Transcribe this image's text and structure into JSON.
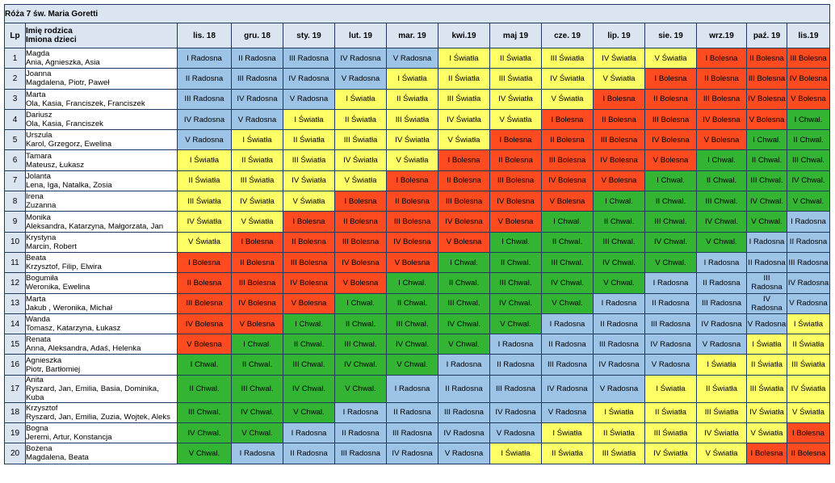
{
  "title": "Róża 7 św. Maria Goretti",
  "headers": {
    "lp": "Lp",
    "parent": "Imię rodzica",
    "children": "Imiona dzieci",
    "months": [
      "lis. 18",
      "gru. 18",
      "sty. 19",
      "lut. 19",
      "mar. 19",
      "kwi.19",
      "maj 19",
      "cze. 19",
      "lip. 19",
      "sie. 19",
      "wrz.19",
      "paź. 19",
      "lis.19"
    ]
  },
  "colors": {
    "Radosna": "#9dc3e6",
    "Światła": "#ffff66",
    "Bolesna": "#ff4b1f",
    "Chwal.": "#33b533",
    "header_bg": "#dbe5f1",
    "border": "#1f3a5f"
  },
  "rows": [
    {
      "lp": "1",
      "parent": "Magda",
      "children": "Ania, Agnieszka, Asia",
      "cells": [
        "I Radosna",
        "II Radosna",
        "III Radosna",
        "IV Radosna",
        "V Radosna",
        "I Światła",
        "II Światła",
        "III Światła",
        "IV Światła",
        "V Światła",
        "I Bolesna",
        "II Bolesna",
        "III Bolesna"
      ]
    },
    {
      "lp": "2",
      "parent": "Joanna",
      "children": "Magdalena, Piotr, Paweł",
      "cells": [
        "II Radosna",
        "III Radosna",
        "IV Radosna",
        "V Radosna",
        "I Światła",
        "II Światła",
        "III Światła",
        "IV Światła",
        "V Światła",
        "I Bolesna",
        "II Bolesna",
        "III Bolesna",
        "IV Bolesna"
      ]
    },
    {
      "lp": "3",
      "parent": "Marta",
      "children": "Ola, Kasia, Franciszek, Franciszek",
      "cells": [
        "III Radosna",
        "IV Radosna",
        "V Radosna",
        "I Światła",
        "II Światła",
        "III Światła",
        "IV Światła",
        "V Światła",
        "I Bolesna",
        "II Bolesna",
        "III Bolesna",
        "IV Bolesna",
        "V Bolesna"
      ]
    },
    {
      "lp": "4",
      "parent": "Dariusz",
      "children": "Ola, Kasia, Franciszek",
      "cells": [
        "IV Radosna",
        "V Radosna",
        "I Światła",
        "II Światła",
        "III Światła",
        "IV Światła",
        "V Światła",
        "I Bolesna",
        "II Bolesna",
        "III Bolesna",
        "IV Bolesna",
        "V Bolesna",
        "I Chwal."
      ]
    },
    {
      "lp": "5",
      "parent": "Urszula",
      "children": "Karol, Grzegorz, Ewelina",
      "cells": [
        "V Radosna",
        "I Światła",
        "II Światła",
        "III Światła",
        "IV Światła",
        "V Światła",
        "I Bolesna",
        "II Bolesna",
        "III Bolesna",
        "IV Bolesna",
        "V Bolesna",
        "I Chwal.",
        "II Chwal."
      ]
    },
    {
      "lp": "6",
      "parent": "Tamara",
      "children": "Mateusz, Łukasz",
      "cells": [
        "I Światła",
        "II Światła",
        "III Światła",
        "IV Światła",
        "V Światła",
        "I Bolesna",
        "II Bolesna",
        "III Bolesna",
        "IV Bolesna",
        "V Bolesna",
        "I Chwal.",
        "II Chwal.",
        "III Chwal."
      ]
    },
    {
      "lp": "7",
      "parent": "Jolanta",
      "children": "Lena, Iga, Natalka, Zosia",
      "cells": [
        "II Światła",
        "III Światła",
        "IV Światła",
        "V Światła",
        "I Bolesna",
        "II Bolesna",
        "III Bolesna",
        "IV Bolesna",
        "V Bolesna",
        "I Chwal.",
        "II Chwal.",
        "III Chwal.",
        "IV Chwal."
      ]
    },
    {
      "lp": "8",
      "parent": "Irena",
      "children": "Zuzanna",
      "cells": [
        "III Światła",
        "IV Światła",
        "V Światła",
        "I Bolesna",
        "II Bolesna",
        "III Bolesna",
        "IV Bolesna",
        "V Bolesna",
        "I Chwal.",
        "II Chwal.",
        "III Chwal.",
        "IV Chwal.",
        "V Chwal."
      ]
    },
    {
      "lp": "9",
      "parent": "Monika",
      "children": "Aleksandra, Katarzyna, Małgorzata, Jan",
      "cells": [
        "IV Światła",
        "V Światła",
        "I Bolesna",
        "II Bolesna",
        "III Bolesna",
        "IV Bolesna",
        "V Bolesna",
        "I Chwal.",
        "II Chwal.",
        "III Chwal.",
        "IV Chwal.",
        "V Chwal.",
        "I Radosna"
      ]
    },
    {
      "lp": "10",
      "parent": "Krystyna",
      "children": "Marcin, Robert",
      "cells": [
        "V Światła",
        "I Bolesna",
        "II Bolesna",
        "III Bolesna",
        "IV Bolesna",
        "V Bolesna",
        "I Chwal.",
        "II Chwal.",
        "III Chwal.",
        "IV Chwal.",
        "V Chwal.",
        "I Radosna",
        "II Radosna"
      ]
    },
    {
      "lp": "11",
      "parent": "Beata",
      "children": "Krzysztof, Filip, Elwira",
      "cells": [
        "I Bolesna",
        "II Bolesna",
        "III Bolesna",
        "IV Bolesna",
        "V Bolesna",
        "I Chwal.",
        "II Chwal.",
        "III Chwal.",
        "IV Chwal.",
        "V Chwal.",
        "I Radosna",
        "II Radosna",
        "III Radosna"
      ]
    },
    {
      "lp": "12",
      "parent": "Bogumiła",
      "children": "Weronika, Ewelina",
      "cells": [
        "II Bolesna",
        "III Bolesna",
        "IV Bolesna",
        "V Bolesna",
        "I Chwal.",
        "II Chwal.",
        "III Chwal.",
        "IV Chwal.",
        "V Chwal.",
        "I Radosna",
        "II Radosna",
        "III Radosna",
        "IV Radosna"
      ]
    },
    {
      "lp": "13",
      "parent": "Marta",
      "children": "Jakub , Weronika, Michał",
      "cells": [
        "III Bolesna",
        "IV Bolesna",
        "V Bolesna",
        "I Chwal.",
        "II Chwal.",
        "III Chwal.",
        "IV Chwal.",
        "V Chwal.",
        "I Radosna",
        "II Radosna",
        "III Radosna",
        "IV Radosna",
        "V Radosna"
      ]
    },
    {
      "lp": "14",
      "parent": "Wanda",
      "children": "Tomasz, Katarzyna, Łukasz",
      "cells": [
        "IV Bolesna",
        "V Bolesna",
        "I Chwal.",
        "II Chwal.",
        "III Chwal.",
        "IV Chwal.",
        "V Chwal.",
        "I Radosna",
        "II Radosna",
        "III Radosna",
        "IV Radosna",
        "V Radosna",
        "I Światła"
      ]
    },
    {
      "lp": "15",
      "parent": "Renata",
      "children": "Anna, Aleksandra, Adaś, Helenka",
      "cells": [
        "V Bolesna",
        "I Chwal.",
        "II Chwal.",
        "III Chwal.",
        "IV Chwal.",
        "V Chwal.",
        "I Radosna",
        "II Radosna",
        "III Radosna",
        "IV Radosna",
        "V Radosna",
        "I Światła",
        "II Światła"
      ]
    },
    {
      "lp": "16",
      "parent": "Agnieszka",
      "children": "Piotr, Bartłomiej",
      "cells": [
        "I Chwal.",
        "II Chwal.",
        "III Chwal.",
        "IV Chwal.",
        "V Chwal.",
        "I Radosna",
        "II Radosna",
        "III Radosna",
        "IV Radosna",
        "V Radosna",
        "I Światła",
        "II Światła",
        "III Światła"
      ]
    },
    {
      "lp": "17",
      "parent": "Anita",
      "children": "Ryszard, Jan, Emilia, Basia, Dominika,",
      "children2": "Kuba",
      "cells": [
        "II Chwal.",
        "III Chwal.",
        "IV Chwal.",
        "V Chwal.",
        "I Radosna",
        "II Radosna",
        "III Radosna",
        "IV Radosna",
        "V Radosna",
        "I Światła",
        "II Światła",
        "III Światła",
        "IV Światła"
      ]
    },
    {
      "lp": "18",
      "parent": "Krzysztof",
      "children": "Ryszard, Jan, Emilia, Zuzia, Wojtek, Aleks",
      "cells": [
        "III Chwal.",
        "IV Chwal.",
        "V Chwal.",
        "I Radosna",
        "II Radosna",
        "III Radosna",
        "IV Radosna",
        "V Radosna",
        "I Światła",
        "II Światła",
        "III Światła",
        "IV Światła",
        "V Światła"
      ]
    },
    {
      "lp": "19",
      "parent": "Bogna",
      "children": "Jeremi, Artur, Konstancja",
      "cells": [
        "IV Chwal.",
        "V Chwal.",
        "I Radosna",
        "II Radosna",
        "III Radosna",
        "IV Radosna",
        "V Radosna",
        "I Światła",
        "II Światła",
        "III Światła",
        "IV Światła",
        "V Światła",
        "I Bolesna"
      ]
    },
    {
      "lp": "20",
      "parent": "Bożena",
      "children": "Magdalena, Beata",
      "cells": [
        "V Chwal.",
        "I Radosna",
        "II Radosna",
        "III Radosna",
        "IV Radosna",
        "V Radosna",
        "I Światła",
        "II Światła",
        "III Światła",
        "IV Światła",
        "V Światła",
        "I Bolesna",
        "II Bolesna"
      ]
    }
  ]
}
